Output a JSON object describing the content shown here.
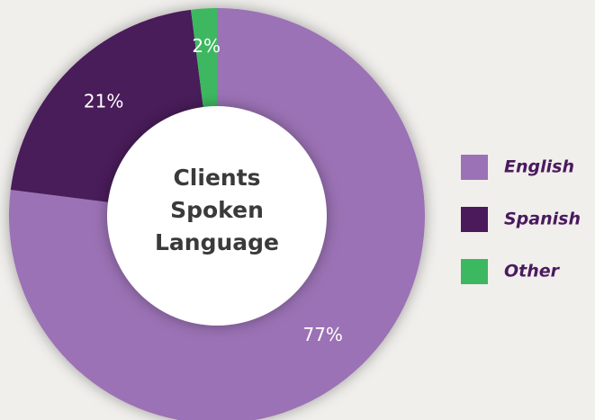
{
  "chart_data": {
    "type": "donut",
    "title": "Clients Spoken Language",
    "categories": [
      "English",
      "Spanish",
      "Other"
    ],
    "values": [
      77,
      21,
      2
    ],
    "value_labels": [
      "77%",
      "21%",
      "2%"
    ],
    "colors": [
      "#9b72b5",
      "#4a1a5a",
      "#3cb860"
    ],
    "legend": "right"
  }
}
